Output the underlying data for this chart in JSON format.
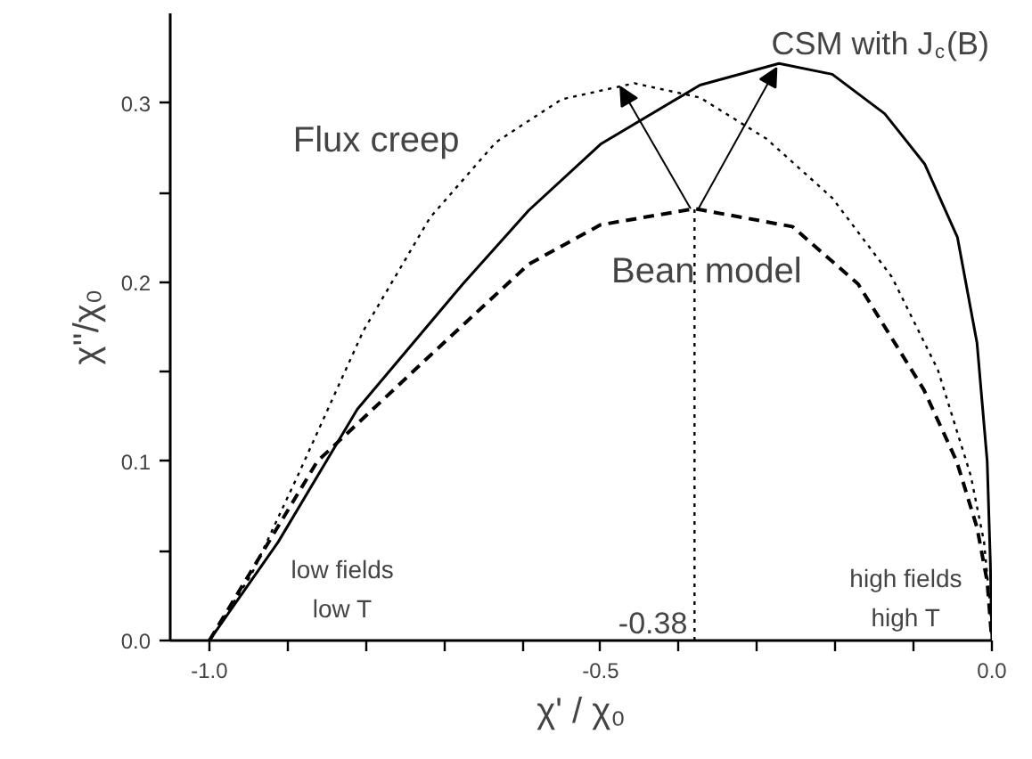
{
  "chart_data": {
    "type": "line",
    "xlabel": "χ' / χ₀",
    "ylabel": "χ''/χ₀",
    "xlim": [
      -1.05,
      0.0
    ],
    "ylim": [
      0.0,
      0.35
    ],
    "xticks": [
      {
        "value": -1.0,
        "label": "-1.0"
      },
      {
        "value": -0.9,
        "label": null
      },
      {
        "value": -0.8,
        "label": null
      },
      {
        "value": -0.7,
        "label": null
      },
      {
        "value": -0.6,
        "label": null
      },
      -0.5,
      {
        "value": -0.4,
        "label": null
      },
      {
        "value": -0.3,
        "label": null
      },
      {
        "value": -0.2,
        "label": null
      },
      {
        "value": -0.1,
        "label": null
      },
      {
        "value": 0.0,
        "label": "0.0"
      }
    ],
    "yticks": [
      {
        "value": 0.0,
        "label": "0.0"
      },
      {
        "value": 0.05,
        "label": null
      },
      0.1,
      {
        "value": 0.15,
        "label": null
      },
      0.2,
      {
        "value": 0.25,
        "label": null
      },
      0.3
    ],
    "grid": false,
    "series": [
      {
        "name": "Bean model",
        "color": "#000000",
        "line_style": "dashed",
        "x": [
          -1.0,
          -0.862,
          -0.718,
          -0.592,
          -0.5,
          -0.38,
          -0.255,
          -0.171,
          -0.087,
          -0.045,
          -0.019,
          -0.006,
          0.0
        ],
        "values": [
          0.0,
          0.1,
          0.159,
          0.21,
          0.232,
          0.241,
          0.231,
          0.199,
          0.14,
          0.1,
          0.063,
          0.033,
          0.0
        ]
      },
      {
        "name": "CSM with J$_{c}$(B)",
        "color": "#000000",
        "line_style": "solid",
        "x": [
          -1.0,
          -0.912,
          -0.811,
          -0.676,
          -0.592,
          -0.5,
          -0.373,
          -0.272,
          -0.204,
          -0.137,
          -0.086,
          -0.044,
          -0.019,
          -0.006,
          -0.002,
          0.0
        ],
        "values": [
          0.0,
          0.055,
          0.129,
          0.199,
          0.24,
          0.277,
          0.31,
          0.322,
          0.316,
          0.294,
          0.266,
          0.225,
          0.166,
          0.1,
          0.044,
          0.0
        ]
      },
      {
        "name": "Flux creep",
        "color": "#000000",
        "line_style": "dotted",
        "x": [
          -1.0,
          -0.946,
          -0.887,
          -0.803,
          -0.718,
          -0.634,
          -0.55,
          -0.457,
          -0.373,
          -0.288,
          -0.204,
          -0.128,
          -0.069,
          -0.027,
          -0.01,
          -0.002,
          0.0
        ],
        "values": [
          0.0,
          0.037,
          0.092,
          0.173,
          0.236,
          0.278,
          0.302,
          0.311,
          0.303,
          0.28,
          0.247,
          0.203,
          0.151,
          0.092,
          0.055,
          0.018,
          0.0
        ]
      },
      {
        "color": "#000000",
        "line_style": "dotted",
        "x": [
          -0.38,
          -0.38
        ],
        "values": [
          0.0,
          0.241
        ]
      }
    ],
    "annotations": [
      {
        "text": "-0.38",
        "x": -0.38,
        "y": 0.0
      },
      "low fields",
      "low T",
      "high fields",
      "high T"
    ]
  }
}
